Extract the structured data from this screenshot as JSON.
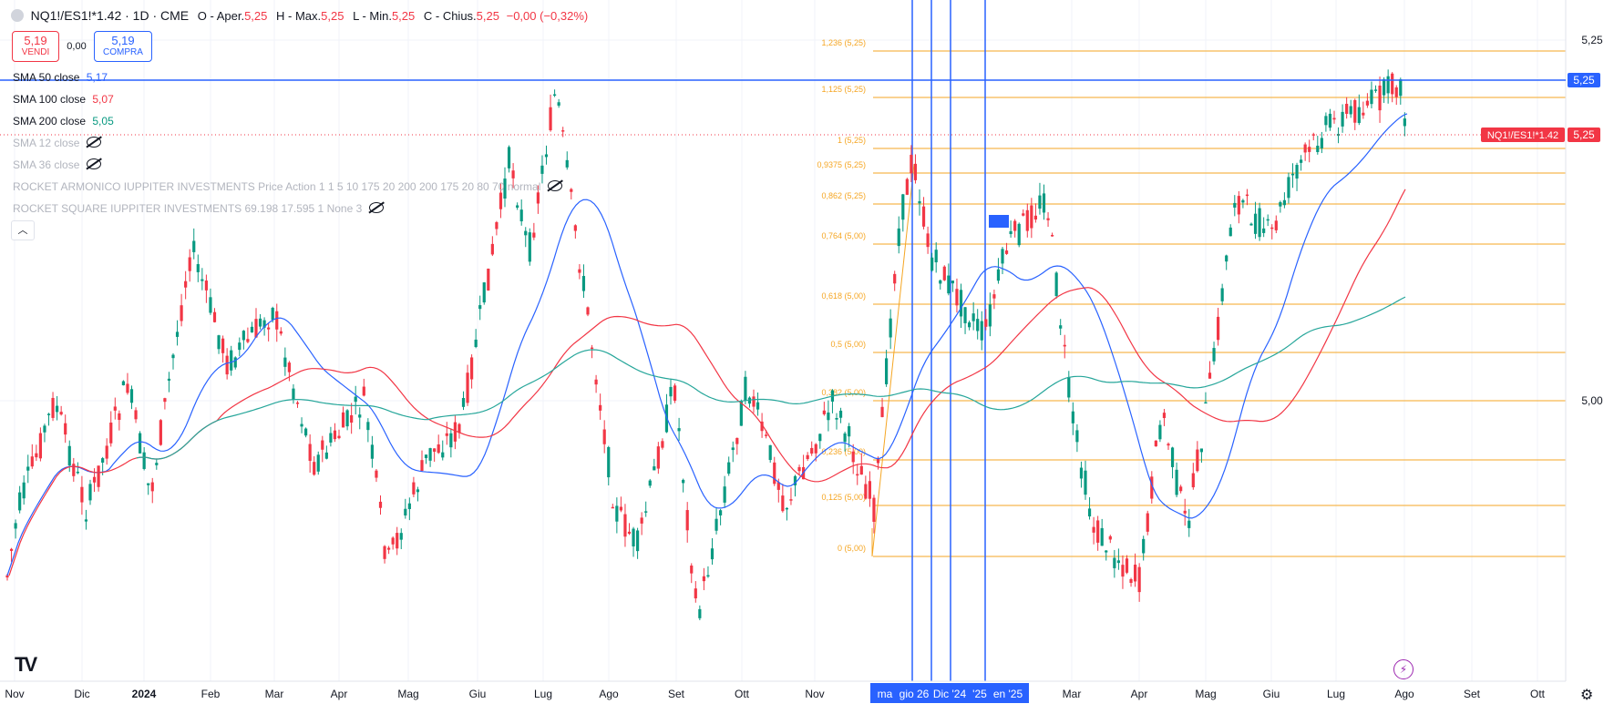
{
  "header": {
    "symbol": "NQ1!/ES1!*1.42 · 1D · CME",
    "open_label": "O - Aper.",
    "open_value": "5,25",
    "high_label": "H - Max.",
    "high_value": "5,25",
    "low_label": "L - Min.",
    "low_value": "5,25",
    "close_label": "C - Chius.",
    "close_value": "5,25",
    "change": "−0,00 (−0,32%)"
  },
  "trade": {
    "sell_price": "5,19",
    "sell_label": "VENDI",
    "spread": "0,00",
    "buy_price": "5,19",
    "buy_label": "COMPRA"
  },
  "indicators": [
    {
      "label": "SMA 50 close",
      "value": "5,17",
      "color": "#2962ff",
      "hidden": false
    },
    {
      "label": "SMA 100 close",
      "value": "5,07",
      "color": "#f23645",
      "hidden": false
    },
    {
      "label": "SMA 200 close",
      "value": "5,05",
      "color": "#089981",
      "hidden": false
    },
    {
      "label": "SMA 12 close",
      "value": "",
      "color": "#b2b5be",
      "hidden": true
    },
    {
      "label": "SMA 36 close",
      "value": "",
      "color": "#b2b5be",
      "hidden": true
    },
    {
      "label": "ROCKET ARMONICO IUPPITER INVESTMENTS Price Action 1 1 5 10 175 20 200 200 175 20 80 70 normal",
      "value": "",
      "color": "#b2b5be",
      "hidden": true
    },
    {
      "label": "ROCKET SQUARE IUPPITER INVESTMENTS 69.198 17.595 1 None 3",
      "value": "",
      "color": "#b2b5be",
      "hidden": true
    }
  ],
  "collapse_icon": "chevron-up-icon",
  "chart_data": {
    "type": "candlestick",
    "y_axis_labels": [
      "5,25",
      "5,00"
    ],
    "x_axis_labels": [
      "Nov",
      "Dic",
      "2024",
      "Feb",
      "Mar",
      "Apr",
      "Mag",
      "Giu",
      "Lug",
      "Ago",
      "Set",
      "Ott",
      "Nov",
      "Mar",
      "Apr",
      "Mag",
      "Giu",
      "Lug",
      "Ago",
      "Set",
      "Ott"
    ],
    "x_axis_highlight": [
      "ma",
      "gio 26",
      "Dic '24",
      "'25",
      "en '25"
    ],
    "last_price": "5,25",
    "last_price_label": "NQ1!/ES1!*1.42",
    "crosshair_price": "5,25",
    "fib_levels": [
      {
        "label": "1,236 (5,25)"
      },
      {
        "label": "1,125 (5,25)"
      },
      {
        "label": "1 (5,25)"
      },
      {
        "label": "0,9375 (5,25)"
      },
      {
        "label": "0,862 (5,25)"
      },
      {
        "label": "0,764 (5,00)"
      },
      {
        "label": "0,618 (5,00)"
      },
      {
        "label": "0,5 (5,00)"
      },
      {
        "label": "0,382 (5,00)"
      },
      {
        "label": "0,236 (5,00)"
      },
      {
        "label": "0,125 (5,00)"
      },
      {
        "label": "0 (5,00)"
      }
    ],
    "colors": {
      "up": "#089981",
      "down": "#f23645",
      "fib": "#f5a623",
      "sma50": "#2962ff",
      "sma100": "#f23645",
      "sma200": "#26a69a",
      "vline": "#2962ff"
    }
  }
}
